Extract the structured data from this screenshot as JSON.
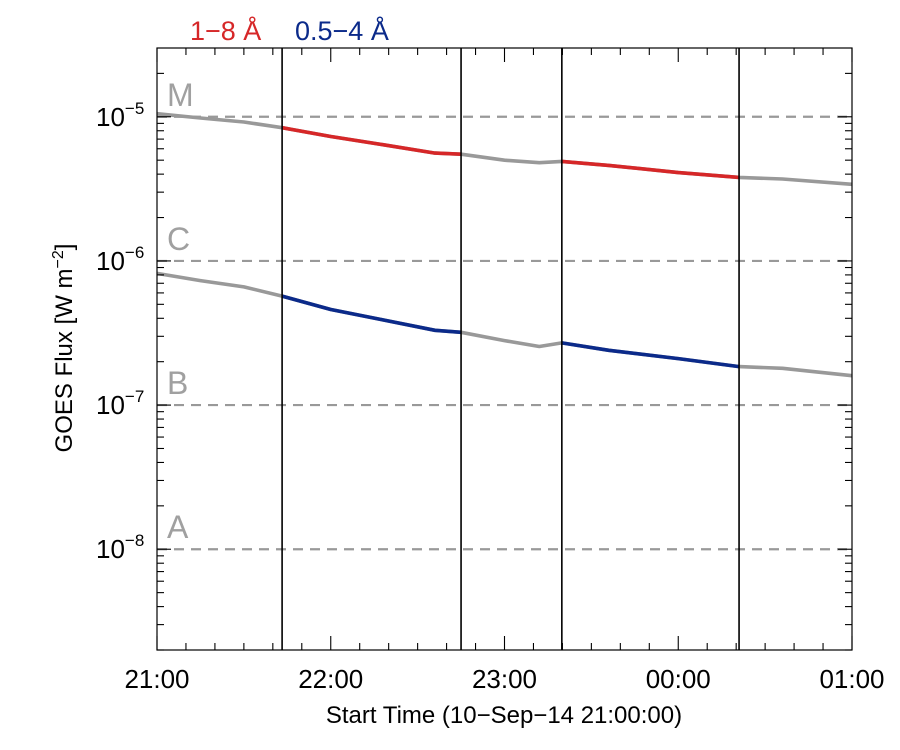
{
  "chart_data": {
    "type": "line",
    "xlabel": "Start Time (10−Sep−14 21:00:00)",
    "ylabel": "GOES Flux [W m",
    "ylabel_sup": "−2",
    "ylabel_close": "]",
    "x_unit": "hours after 21:00 UT",
    "xlim": [
      0,
      4
    ],
    "ylim": [
      2e-09,
      3e-05
    ],
    "yscale": "log",
    "x_ticks": [
      {
        "value": 0,
        "label": "21:00"
      },
      {
        "value": 1,
        "label": "22:00"
      },
      {
        "value": 2,
        "label": "23:00"
      },
      {
        "value": 3,
        "label": "00:00"
      },
      {
        "value": 4,
        "label": "01:00"
      }
    ],
    "y_ticks": [
      {
        "value": 1e-08,
        "base": "10",
        "exp": "−8"
      },
      {
        "value": 1e-07,
        "base": "10",
        "exp": "−7"
      },
      {
        "value": 1e-06,
        "base": "10",
        "exp": "−6"
      },
      {
        "value": 1e-05,
        "base": "10",
        "exp": "−5"
      }
    ],
    "class_levels": [
      {
        "label": "A",
        "value": 1e-08
      },
      {
        "label": "B",
        "value": 1e-07
      },
      {
        "label": "C",
        "value": 1e-06
      },
      {
        "label": "M",
        "value": 1e-05
      }
    ],
    "vertical_lines": [
      0.72,
      1.75,
      2.33,
      3.35
    ],
    "highlight_ranges": [
      [
        0.72,
        1.75
      ],
      [
        2.33,
        3.35
      ]
    ],
    "grid": false,
    "legend_position": "top-left above plot",
    "series": [
      {
        "name": "1−8 Å",
        "color": "#d62728",
        "base_color": "#999999",
        "x": [
          0,
          0.25,
          0.5,
          0.72,
          1.0,
          1.3,
          1.6,
          1.75,
          2.0,
          2.2,
          2.33,
          2.6,
          3.0,
          3.35,
          3.6,
          4.0
        ],
        "y": [
          1.05e-05,
          9.8e-06,
          9.2e-06,
          8.4e-06,
          7.3e-06,
          6.4e-06,
          5.6e-06,
          5.5e-06,
          5e-06,
          4.8e-06,
          4.9e-06,
          4.6e-06,
          4.1e-06,
          3.8e-06,
          3.7e-06,
          3.4e-06
        ]
      },
      {
        "name": "0.5−4 Å",
        "color": "#0b2a8a",
        "base_color": "#999999",
        "x": [
          0,
          0.25,
          0.5,
          0.72,
          1.0,
          1.3,
          1.6,
          1.75,
          2.0,
          2.2,
          2.33,
          2.6,
          3.0,
          3.35,
          3.6,
          4.0
        ],
        "y": [
          8.2e-07,
          7.3e-07,
          6.6e-07,
          5.7e-07,
          4.6e-07,
          3.9e-07,
          3.3e-07,
          3.2e-07,
          2.8e-07,
          2.55e-07,
          2.7e-07,
          2.4e-07,
          2.1e-07,
          1.85e-07,
          1.8e-07,
          1.6e-07
        ]
      }
    ]
  }
}
